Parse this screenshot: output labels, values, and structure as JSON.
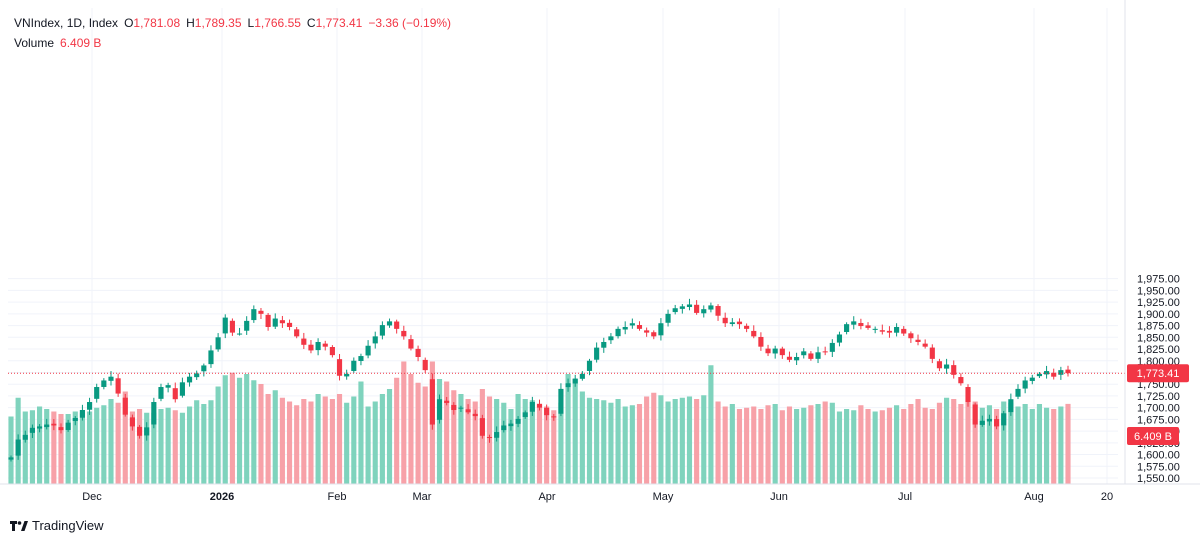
{
  "header": {
    "symbol": "VNIndex, 1D, Index",
    "open_label": "O",
    "open": "1,781.08",
    "high_label": "H",
    "high": "1,789.35",
    "low_label": "L",
    "low": "1,766.55",
    "close_label": "C",
    "close": "1,773.41",
    "change": "−3.36 (−0.19%)",
    "volume_label": "Volume",
    "volume": "6.409 B"
  },
  "brand": {
    "name": "TradingView",
    "logo_icon": "tradingview-logo-icon"
  },
  "colors": {
    "up": "#089981",
    "down": "#f23645",
    "up_volume": "#7fd3bd",
    "down_volume": "#f7a1a8",
    "grid": "#f0f3fa",
    "text": "#131722"
  },
  "chart_data": {
    "type": "candlestick",
    "y_axis": {
      "side": "right",
      "ticks": [
        "1,550.00",
        "1,575.00",
        "1,600.00",
        "1,625.00",
        "1,650.00",
        "1,675.00",
        "1,700.00",
        "1,725.00",
        "1,750.00",
        "1,775.00",
        "1,800.00",
        "1,825.00",
        "1,850.00",
        "1,875.00",
        "1,900.00",
        "1,925.00",
        "1,950.00",
        "1,975.00"
      ]
    },
    "x_axis": {
      "ticks": [
        "Dec",
        "2026",
        "Feb",
        "Mar",
        "Apr",
        "May",
        "Jun",
        "Jul",
        "Aug",
        "20"
      ]
    },
    "last_price_label": "1,773.41",
    "last_volume_label": "6.409 B",
    "price_series": [
      1594,
      1632,
      1642,
      1657,
      1660,
      1664,
      1662,
      1652,
      1668,
      1678,
      1695,
      1712,
      1744,
      1758,
      1766,
      1730,
      1685,
      1660,
      1640,
      1658,
      1712,
      1744,
      1748,
      1718,
      1754,
      1766,
      1773,
      1790,
      1822,
      1850,
      1892,
      1860,
      1858,
      1885,
      1910,
      1900,
      1872,
      1890,
      1880,
      1872,
      1852,
      1834,
      1822,
      1840,
      1830,
      1812,
      1768,
      1772,
      1800,
      1810,
      1832,
      1852,
      1876,
      1884,
      1868,
      1852,
      1826,
      1808,
      1780,
      1664,
      1718,
      1710,
      1695,
      1700,
      1690,
      1682,
      1640,
      1636,
      1648,
      1662,
      1666,
      1676,
      1690,
      1712,
      1700,
      1684,
      1680,
      1740,
      1752,
      1762,
      1772,
      1800,
      1828,
      1840,
      1852,
      1868,
      1872,
      1880,
      1868,
      1860,
      1852,
      1880,
      1900,
      1912,
      1916,
      1920,
      1902,
      1910,
      1918,
      1896,
      1880,
      1882,
      1878,
      1868,
      1852,
      1830,
      1816,
      1826,
      1812,
      1802,
      1808,
      1820,
      1804,
      1818,
      1818,
      1838,
      1856,
      1878,
      1884,
      1874,
      1870,
      1868,
      1862,
      1860,
      1872,
      1858,
      1848,
      1840,
      1830,
      1804,
      1784,
      1792,
      1770,
      1752,
      1712,
      1664,
      1672,
      1676,
      1660,
      1688,
      1718,
      1740,
      1758,
      1764,
      1772,
      1778,
      1766,
      1780,
      1773.41
    ],
    "volume_unit": "B",
    "volume_series": [
      5.4,
      6.9,
      5.8,
      5.9,
      6.2,
      6.0,
      5.8,
      5.6,
      5.6,
      5.8,
      5.7,
      5.8,
      6.1,
      6.3,
      6.8,
      6.5,
      7.4,
      5.8,
      6.0,
      5.7,
      5.7,
      6.0,
      6.1,
      5.9,
      5.7,
      6.2,
      6.7,
      6.4,
      6.7,
      7.8,
      8.7,
      8.9,
      8.5,
      8.8,
      8.3,
      8.0,
      7.2,
      7.5,
      6.9,
      6.6,
      6.3,
      6.8,
      6.6,
      7.2,
      7.0,
      6.8,
      7.2,
      6.5,
      7.0,
      8.2,
      6.2,
      6.6,
      7.2,
      7.6,
      8.5,
      9.8,
      8.8,
      8.1,
      7.8,
      9.8,
      8.4,
      8.2,
      7.5,
      7.2,
      6.8,
      6.6,
      7.6,
      7.0,
      6.8,
      6.5,
      6.0,
      7.2,
      6.8,
      6.7,
      6.3,
      6.2,
      5.9,
      6.5,
      8.8,
      8.4,
      7.4,
      6.9,
      6.8,
      6.7,
      6.5,
      6.8,
      6.2,
      6.3,
      6.4,
      7.0,
      7.3,
      7.1,
      6.6,
      6.8,
      6.9,
      7.0,
      6.8,
      7.1,
      9.5,
      6.6,
      6.2,
      6.4,
      6.0,
      6.1,
      6.2,
      6.0,
      6.3,
      6.4,
      5.9,
      6.2,
      6.0,
      6.1,
      6.3,
      6.4,
      6.6,
      6.5,
      5.8,
      6.0,
      5.9,
      6.3,
      6.0,
      5.8,
      5.9,
      6.1,
      6.3,
      6.0,
      6.4,
      6.8,
      6.1,
      6.0,
      6.5,
      6.9,
      6.8,
      6.4,
      6.7,
      6.6,
      6.1,
      6.3,
      6.0,
      6.6,
      6.5,
      6.2,
      6.4,
      6.0,
      6.4,
      6.1,
      6.0,
      6.2,
      6.409
    ]
  }
}
